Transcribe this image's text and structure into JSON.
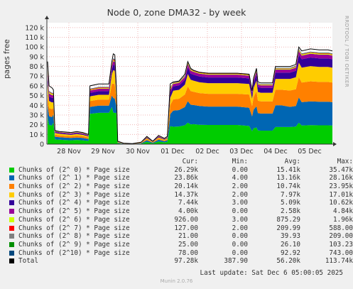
{
  "chart_data": {
    "type": "area",
    "title": "Node 0, zone DMA32 - by week",
    "ylabel": "pages free",
    "ylim": [
      0,
      125000
    ],
    "y_ticks": [
      0,
      10000,
      20000,
      30000,
      40000,
      50000,
      60000,
      70000,
      80000,
      90000,
      100000,
      110000,
      120000
    ],
    "y_tick_labels": [
      "0",
      "10 k",
      "20 k",
      "30 k",
      "40 k",
      "50 k",
      "60 k",
      "70 k",
      "80 k",
      "90 k",
      "100 k",
      "110 k",
      "120 k"
    ],
    "x_tick_labels": [
      "28 Nov",
      "29 Nov",
      "30 Nov",
      "01 Dec",
      "02 Dec",
      "03 Dec",
      "04 Dec",
      "05 Dec"
    ],
    "grid": true,
    "totals_profile": [
      [
        0,
        85000
      ],
      [
        1,
        60000
      ],
      [
        3,
        58000
      ],
      [
        4,
        56000
      ],
      [
        5,
        14000
      ],
      [
        8,
        13000
      ],
      [
        12,
        12500
      ],
      [
        16,
        12000
      ],
      [
        20,
        13000
      ],
      [
        24,
        12000
      ],
      [
        28,
        10000
      ],
      [
        29,
        60000
      ],
      [
        35,
        62000
      ],
      [
        42,
        62000
      ],
      [
        44,
        85000
      ],
      [
        45,
        93000
      ],
      [
        46,
        92000
      ],
      [
        47,
        62000
      ],
      [
        48,
        3000
      ],
      [
        52,
        1000
      ],
      [
        58,
        500
      ],
      [
        64,
        2000
      ],
      [
        68,
        8000
      ],
      [
        72,
        3000
      ],
      [
        76,
        9000
      ],
      [
        80,
        6000
      ],
      [
        82,
        8000
      ],
      [
        84,
        62000
      ],
      [
        86,
        64000
      ],
      [
        90,
        65000
      ],
      [
        94,
        72000
      ],
      [
        96,
        85000
      ],
      [
        98,
        78000
      ],
      [
        100,
        76000
      ],
      [
        104,
        74000
      ],
      [
        110,
        73000
      ],
      [
        120,
        73000
      ],
      [
        130,
        73000
      ],
      [
        138,
        72000
      ],
      [
        140,
        55000
      ],
      [
        141,
        68000
      ],
      [
        143,
        78000
      ],
      [
        144,
        64000
      ],
      [
        146,
        63000
      ],
      [
        150,
        63000
      ],
      [
        154,
        63000
      ],
      [
        156,
        80000
      ],
      [
        160,
        80000
      ],
      [
        166,
        80000
      ],
      [
        170,
        82000
      ],
      [
        172,
        100000
      ],
      [
        174,
        96000
      ],
      [
        180,
        98000
      ],
      [
        186,
        97000
      ],
      [
        192,
        97000
      ],
      [
        195,
        96000
      ]
    ],
    "series": [
      {
        "name": "Chunks of (2^ 0) * Page size",
        "color": "#00cc00",
        "cur": "26.29k",
        "min": "0.00",
        "avg": "15.41k",
        "max": "35.47k",
        "values": [
          0.33,
          0.33,
          0.33,
          0.4,
          0.35,
          0.35,
          0.34,
          0.33,
          0.33,
          0.33,
          0.33,
          0.52,
          0.52,
          0.52,
          0.45,
          0.35,
          0.35,
          0.52,
          0.3,
          0.3,
          0.3,
          0.3,
          0.3,
          0.3,
          0.3,
          0.3,
          0.3,
          0.3,
          0.28,
          0.28,
          0.27,
          0.26,
          0.26,
          0.27,
          0.27,
          0.27,
          0.27,
          0.27,
          0.26,
          0.24,
          0.24,
          0.22,
          0.22,
          0.22,
          0.22,
          0.22,
          0.22,
          0.22,
          0.22,
          0.22,
          0.22,
          0.2,
          0.2,
          0.2,
          0.2,
          0.2,
          0.27
        ]
      },
      {
        "name": "Chunks of (2^ 1) * Page size",
        "color": "#0066b3",
        "cur": "23.86k",
        "min": "4.00",
        "avg": "13.16k",
        "max": "28.16k",
        "values": [
          0.15,
          0.15,
          0.15,
          0.15,
          0.2,
          0.2,
          0.2,
          0.2,
          0.2,
          0.2,
          0.2,
          0.12,
          0.12,
          0.12,
          0.14,
          0.16,
          0.16,
          0.12,
          0.2,
          0.2,
          0.2,
          0.2,
          0.2,
          0.2,
          0.2,
          0.2,
          0.2,
          0.2,
          0.26,
          0.26,
          0.26,
          0.26,
          0.26,
          0.26,
          0.26,
          0.26,
          0.26,
          0.26,
          0.26,
          0.28,
          0.28,
          0.28,
          0.28,
          0.28,
          0.28,
          0.28,
          0.28,
          0.28,
          0.26,
          0.26,
          0.26,
          0.25,
          0.25,
          0.25,
          0.25,
          0.25,
          0.25
        ]
      },
      {
        "name": "Chunks of (2^ 2) * Page size",
        "color": "#ff8000",
        "cur": "20.14k",
        "min": "2.00",
        "avg": "10.74k",
        "max": "23.95k",
        "values": [
          0.14,
          0.14,
          0.14,
          0.12,
          0.15,
          0.15,
          0.15,
          0.15,
          0.15,
          0.15,
          0.15,
          0.1,
          0.1,
          0.1,
          0.14,
          0.16,
          0.16,
          0.1,
          0.15,
          0.15,
          0.15,
          0.15,
          0.15,
          0.15,
          0.15,
          0.15,
          0.15,
          0.15,
          0.18,
          0.18,
          0.18,
          0.18,
          0.18,
          0.18,
          0.18,
          0.18,
          0.18,
          0.18,
          0.19,
          0.19,
          0.19,
          0.2,
          0.2,
          0.2,
          0.2,
          0.2,
          0.2,
          0.2,
          0.21,
          0.21,
          0.21,
          0.21,
          0.21,
          0.21,
          0.21,
          0.21,
          0.21
        ]
      },
      {
        "name": "Chunks of (2^ 3) * Page size",
        "color": "#ffcc00",
        "cur": "14.37k",
        "min": "2.00",
        "avg": "7.97k",
        "max": "17.01k",
        "values": [
          0.12,
          0.12,
          0.12,
          0.1,
          0.12,
          0.12,
          0.12,
          0.12,
          0.12,
          0.12,
          0.12,
          0.08,
          0.08,
          0.08,
          0.12,
          0.15,
          0.15,
          0.08,
          0.12,
          0.12,
          0.12,
          0.12,
          0.12,
          0.12,
          0.12,
          0.12,
          0.12,
          0.12,
          0.14,
          0.14,
          0.14,
          0.15,
          0.15,
          0.15,
          0.15,
          0.15,
          0.15,
          0.15,
          0.15,
          0.14,
          0.14,
          0.14,
          0.14,
          0.14,
          0.14,
          0.14,
          0.14,
          0.14,
          0.15,
          0.15,
          0.15,
          0.16,
          0.16,
          0.16,
          0.16,
          0.16,
          0.15
        ]
      },
      {
        "name": "Chunks of (2^ 4) * Page size",
        "color": "#330099",
        "cur": "7.44k",
        "min": "3.00",
        "avg": "5.09k",
        "max": "10.62k",
        "values": [
          0.08,
          0.08,
          0.08,
          0.08,
          0.07,
          0.07,
          0.07,
          0.07,
          0.07,
          0.07,
          0.07,
          0.06,
          0.06,
          0.06,
          0.06,
          0.06,
          0.06,
          0.06,
          0.08,
          0.08,
          0.08,
          0.08,
          0.08,
          0.08,
          0.08,
          0.08,
          0.08,
          0.08,
          0.07,
          0.07,
          0.07,
          0.08,
          0.08,
          0.08,
          0.08,
          0.08,
          0.08,
          0.08,
          0.08,
          0.08,
          0.08,
          0.08,
          0.08,
          0.08,
          0.08,
          0.08,
          0.08,
          0.08,
          0.08,
          0.08,
          0.08,
          0.09,
          0.09,
          0.09,
          0.09,
          0.09,
          0.08
        ]
      },
      {
        "name": "Chunks of (2^ 5) * Page size",
        "color": "#990099",
        "cur": "4.00k",
        "min": "0.00",
        "avg": "2.58k",
        "max": "4.84k",
        "values": [
          0.05,
          0.05,
          0.05,
          0.05,
          0.05,
          0.05,
          0.05,
          0.05,
          0.05,
          0.05,
          0.05,
          0.04,
          0.04,
          0.04,
          0.04,
          0.04,
          0.04,
          0.04,
          0.05,
          0.05,
          0.05,
          0.05,
          0.05,
          0.05,
          0.05,
          0.05,
          0.05,
          0.05,
          0.04,
          0.04,
          0.04,
          0.04,
          0.04,
          0.04,
          0.04,
          0.04,
          0.04,
          0.04,
          0.04,
          0.04,
          0.04,
          0.04,
          0.04,
          0.04,
          0.04,
          0.04,
          0.04,
          0.04,
          0.04,
          0.04,
          0.04,
          0.04,
          0.04,
          0.04,
          0.04,
          0.04,
          0.04
        ]
      },
      {
        "name": "Chunks of (2^ 6) * Page size",
        "color": "#ccff00",
        "cur": "926.00",
        "min": "3.00",
        "avg": "875.29",
        "max": "1.96k",
        "values": [
          0.02,
          0.02,
          0.02,
          0.02,
          0.02,
          0.02,
          0.02,
          0.02,
          0.02,
          0.02,
          0.02,
          0.01,
          0.01,
          0.01,
          0.01,
          0.01,
          0.01,
          0.01,
          0.02,
          0.02,
          0.02,
          0.02,
          0.02,
          0.02,
          0.02,
          0.02,
          0.02,
          0.02,
          0.01,
          0.01,
          0.01,
          0.01,
          0.01,
          0.01,
          0.01,
          0.01,
          0.01,
          0.01,
          0.01,
          0.01,
          0.01,
          0.01,
          0.01,
          0.01,
          0.01,
          0.01,
          0.01,
          0.01,
          0.01,
          0.01,
          0.01,
          0.01,
          0.01,
          0.01,
          0.01,
          0.01,
          0.01
        ]
      },
      {
        "name": "Chunks of (2^ 7) * Page size",
        "color": "#ff0000",
        "cur": "127.00",
        "min": "2.00",
        "avg": "209.99",
        "max": "588.00",
        "values": [
          0.01,
          0.01,
          0.01,
          0.01,
          0.01,
          0.01,
          0.01,
          0.01,
          0.01,
          0.01,
          0.01,
          0.01,
          0.01,
          0.01,
          0.01,
          0.01,
          0.01,
          0.01,
          0.01,
          0.01,
          0.01,
          0.01,
          0.01,
          0.01,
          0.01,
          0.01,
          0.01,
          0.01,
          0.005,
          0.005,
          0.005,
          0.005,
          0.005,
          0.005,
          0.005,
          0.005,
          0.005,
          0.005,
          0.005,
          0.005,
          0.005,
          0.005,
          0.005,
          0.005,
          0.005,
          0.005,
          0.005,
          0.005,
          0.005,
          0.005,
          0.005,
          0.005,
          0.005,
          0.005,
          0.005,
          0.005,
          0.005
        ]
      },
      {
        "name": "Chunks of (2^ 8) * Page size",
        "color": "#808080",
        "cur": "21.00",
        "min": "0.00",
        "avg": "39.93",
        "max": "209.00",
        "values": [
          0.003,
          0.003,
          0.003,
          0.003,
          0.003,
          0.003,
          0.003,
          0.003,
          0.003,
          0.003,
          0.003,
          0.003,
          0.003,
          0.003,
          0.003,
          0.003,
          0.003,
          0.003,
          0.003,
          0.003,
          0.003,
          0.003,
          0.003,
          0.003,
          0.003,
          0.003,
          0.003,
          0.003,
          0.002,
          0.002,
          0.002,
          0.002,
          0.002,
          0.002,
          0.002,
          0.002,
          0.002,
          0.002,
          0.002,
          0.002,
          0.002,
          0.002,
          0.002,
          0.002,
          0.002,
          0.002,
          0.002,
          0.002,
          0.002,
          0.002,
          0.002,
          0.002,
          0.002,
          0.002,
          0.002,
          0.002,
          0.002
        ]
      },
      {
        "name": "Chunks of (2^ 9) * Page size",
        "color": "#008f00",
        "cur": "25.00",
        "min": "0.00",
        "avg": "26.10",
        "max": "103.23",
        "values": [
          0.002,
          0.002,
          0.002,
          0.002,
          0.002,
          0.002,
          0.002,
          0.002,
          0.002,
          0.002,
          0.002,
          0.002,
          0.002,
          0.002,
          0.002,
          0.002,
          0.002,
          0.002,
          0.002,
          0.002,
          0.002,
          0.002,
          0.002,
          0.002,
          0.002,
          0.002,
          0.002,
          0.002,
          0.002,
          0.002,
          0.002,
          0.002,
          0.002,
          0.002,
          0.002,
          0.002,
          0.002,
          0.002,
          0.002,
          0.002,
          0.002,
          0.002,
          0.002,
          0.002,
          0.002,
          0.002,
          0.002,
          0.002,
          0.002,
          0.002,
          0.002,
          0.002,
          0.002,
          0.002,
          0.002,
          0.002,
          0.002
        ]
      },
      {
        "name": "Chunks of (2^10) * Page size",
        "color": "#00487d",
        "cur": "78.00",
        "min": "0.00",
        "avg": "92.92",
        "max": "743.00",
        "values": [
          0.005,
          0.005,
          0.005,
          0.005,
          0.005,
          0.005,
          0.005,
          0.005,
          0.005,
          0.005,
          0.005,
          0.005,
          0.005,
          0.005,
          0.005,
          0.005,
          0.005,
          0.005,
          0.005,
          0.005,
          0.005,
          0.005,
          0.005,
          0.005,
          0.005,
          0.005,
          0.005,
          0.005,
          0.003,
          0.003,
          0.003,
          0.003,
          0.003,
          0.003,
          0.003,
          0.003,
          0.003,
          0.003,
          0.003,
          0.003,
          0.003,
          0.003,
          0.003,
          0.003,
          0.003,
          0.003,
          0.003,
          0.003,
          0.003,
          0.003,
          0.003,
          0.003,
          0.003,
          0.003,
          0.003,
          0.003,
          0.003
        ]
      }
    ],
    "total": {
      "name": "Total",
      "color": "#000000",
      "cur": "97.28k",
      "min": "387.90",
      "avg": "56.20k",
      "max": "113.74k"
    }
  },
  "legend_header": {
    "cur": "Cur:",
    "min": "Min:",
    "avg": "Avg:",
    "max": "Max:"
  },
  "side_tag": "RRDTOOL / TOBI OETIKER",
  "footer": "Last update: Sat Dec  6 05:00:05 2025",
  "munin_version": "Munin 2.0.76"
}
